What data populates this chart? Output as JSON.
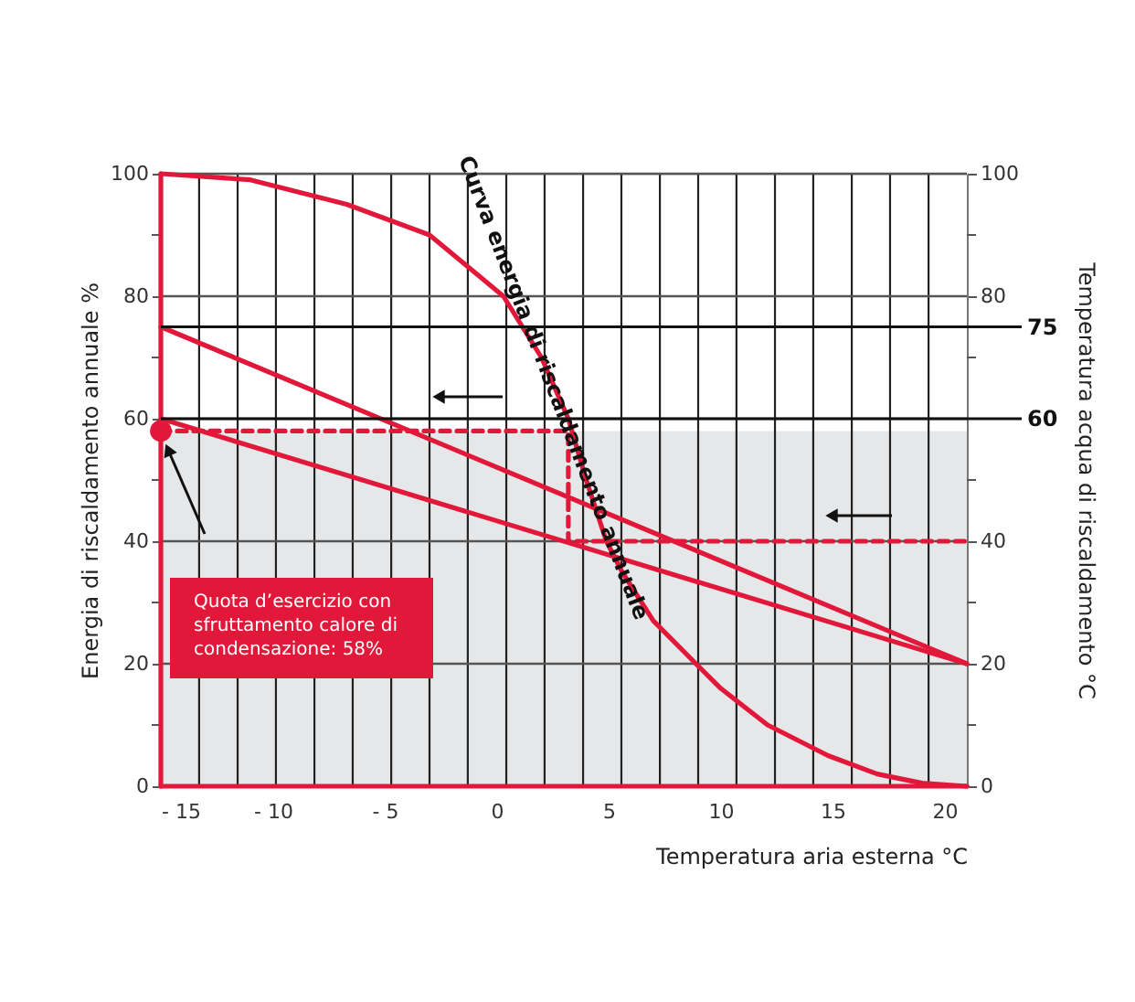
{
  "chart_data": {
    "type": "line",
    "xlabel": "Temperatura aria esterna °C",
    "ylabel": "Energia di riscaldamento annuale %",
    "y2label": "Temperatura acqua di riscaldamento °C",
    "xlim": [
      -15,
      21
    ],
    "xticks": [
      {
        "value": -15,
        "label": "- 15"
      },
      {
        "value": -10,
        "label": "- 10"
      },
      {
        "value": -5,
        "label": "- 5"
      },
      0,
      5,
      10,
      15,
      20,
      {
        "value": -13.29,
        "label": null
      },
      {
        "value": -11.57,
        "label": null
      },
      {
        "value": -9.86,
        "label": null
      },
      {
        "value": -8.14,
        "label": null
      },
      {
        "value": -6.43,
        "label": null
      },
      {
        "value": -4.71,
        "label": null
      },
      {
        "value": -3.0,
        "label": null
      },
      {
        "value": -1.29,
        "label": null
      },
      {
        "value": 0.43,
        "label": null
      },
      {
        "value": 2.14,
        "label": null
      },
      {
        "value": 3.86,
        "label": null
      },
      {
        "value": 5.57,
        "label": null
      },
      {
        "value": 7.29,
        "label": null
      },
      {
        "value": 9.0,
        "label": null
      },
      {
        "value": 10.71,
        "label": null
      },
      {
        "value": 12.43,
        "label": null
      },
      {
        "value": 14.14,
        "label": null
      },
      {
        "value": 15.86,
        "label": null
      },
      {
        "value": 17.57,
        "label": null
      },
      {
        "value": 19.29,
        "label": null
      }
    ],
    "ylim": [
      0,
      100
    ],
    "yticks": [
      0,
      20,
      40,
      60,
      80,
      100,
      {
        "value": 10,
        "label": null
      },
      {
        "value": 30,
        "label": null
      },
      {
        "value": 50,
        "label": null
      },
      {
        "value": 70,
        "label": null
      },
      {
        "value": 90,
        "label": null
      }
    ],
    "y2lim": [
      0,
      100
    ],
    "y2ticks": [
      0,
      20,
      40,
      80,
      100,
      {
        "value": 10,
        "label": null
      },
      {
        "value": 30,
        "label": null
      },
      {
        "value": 50,
        "label": null
      },
      {
        "value": 70,
        "label": null
      },
      {
        "value": 90,
        "label": null
      }
    ],
    "grid": true,
    "line_style": "solid",
    "marker": "none",
    "series": [
      {
        "color": "#e2183a",
        "x": [
          -15,
          -11,
          -6.7,
          -3,
          0.3,
          2,
          3.2,
          4,
          4.9,
          5.6,
          7,
          8.9,
          10,
          12.1,
          14.8,
          17,
          19,
          21
        ],
        "values": [
          100,
          99,
          95,
          90,
          80,
          70,
          60,
          50,
          40,
          35,
          27,
          20,
          16,
          10,
          5,
          2,
          0.5,
          0
        ]
      },
      {
        "color": "#e2183a",
        "x": [
          -15,
          -15
        ],
        "values": [
          0,
          100
        ]
      },
      {
        "color": "#e2183a",
        "x": [
          -15,
          21
        ],
        "values": [
          0,
          0
        ]
      },
      {
        "color": "#e2183a",
        "x": [
          -15,
          21
        ],
        "values": [
          75,
          20
        ]
      },
      {
        "color": "#e2183a",
        "x": [
          -15,
          21
        ],
        "values": [
          60,
          20
        ]
      },
      {
        "color": "#e2183a",
        "line_style": "dashed",
        "x": [
          -15,
          3.2,
          3.2,
          21
        ],
        "values": [
          58,
          58,
          40,
          40
        ]
      },
      {
        "type": "scatter",
        "marker": "circle",
        "color": "#e2183a",
        "x": [
          -15
        ],
        "values": [
          58
        ]
      }
    ],
    "bands": [
      {
        "axis": "y",
        "from": 0,
        "to": 58,
        "color": "#e6e7e9"
      }
    ],
    "ref_lines": [
      {
        "axis": "y2",
        "value": 75,
        "label": "75"
      },
      {
        "axis": "y2",
        "value": 60,
        "label": "60"
      }
    ],
    "annotations": [
      "Curva energia di riscaldamento annuale",
      "Quota d’esercizio con\nsfruttamento calore di\ncondensazione: 58%"
    ]
  }
}
